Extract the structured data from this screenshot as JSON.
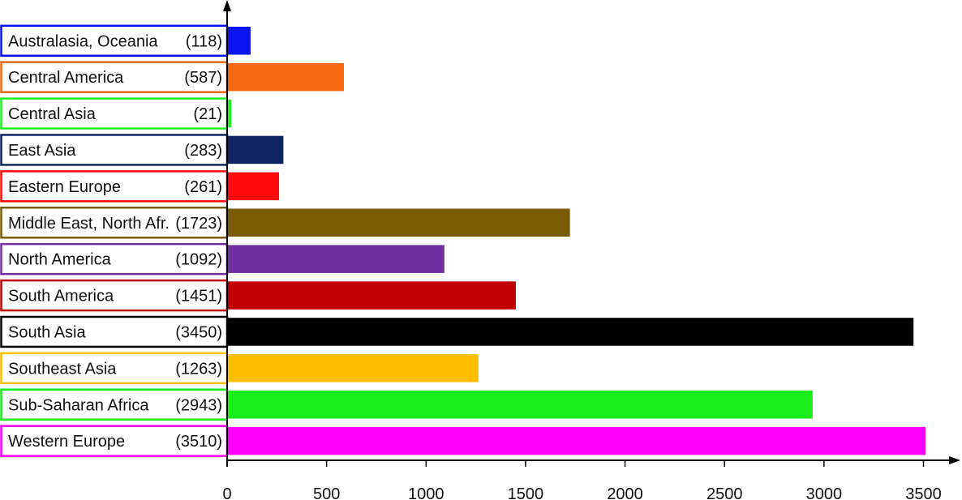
{
  "chart_data": {
    "type": "bar",
    "orientation": "horizontal",
    "title": "",
    "xlabel": "",
    "ylabel": "",
    "xlim": [
      0,
      3500
    ],
    "grid": false,
    "legend": "none",
    "x_ticks": [
      "0",
      "500",
      "1000",
      "1500",
      "2000",
      "2500",
      "3000",
      "3500"
    ],
    "categories": [
      "Australasia, Oceania",
      "Central America",
      "Central Asia",
      "East Asia",
      "Eastern Europe",
      "Middle East, North Afr.",
      "North America",
      "South America",
      "South Asia",
      "Southeast Asia",
      "Sub-Saharan Africa",
      "Western Europe"
    ],
    "count_labels": [
      "(118)",
      "(587)",
      "(21)",
      "(283)",
      "(261)",
      "(1723)",
      "(1092)",
      "(1451)",
      "(3450)",
      "(1263)",
      "(2943)",
      "(3510)"
    ],
    "values": [
      118,
      587,
      21,
      283,
      261,
      1723,
      1092,
      1451,
      3450,
      1263,
      2943,
      3510
    ],
    "colors": [
      "#0a14f0",
      "#f4690f",
      "#22ee22",
      "#0c2460",
      "#ff0a0a",
      "#7a5c06",
      "#7030a0",
      "#c00000",
      "#000000",
      "#ffbf00",
      "#1aee1a",
      "#ff00ff"
    ]
  }
}
